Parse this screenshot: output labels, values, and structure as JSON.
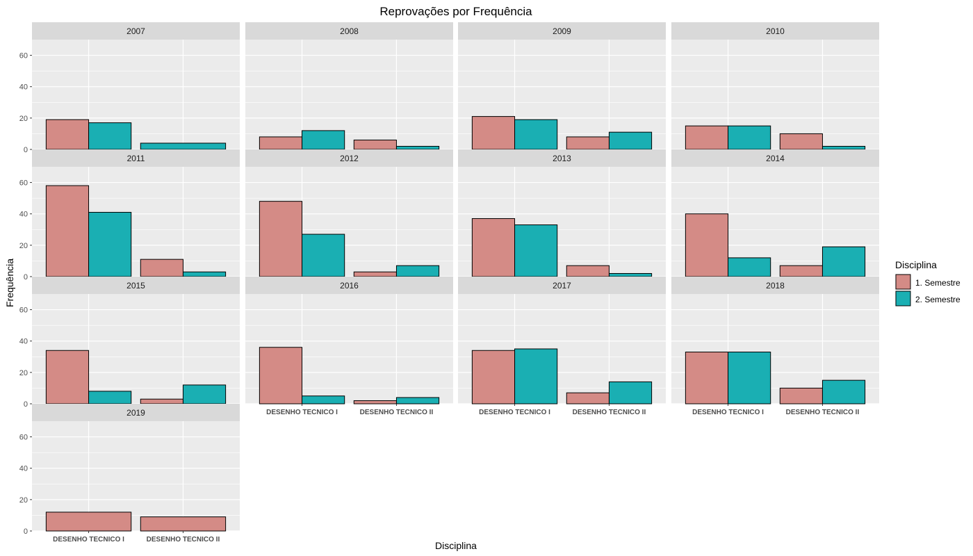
{
  "chart_data": {
    "type": "bar",
    "title": "Reprovações por Frequência",
    "xlabel": "Disciplina",
    "ylabel": "Frequência",
    "ylim": [
      0,
      70
    ],
    "yticks": [
      0,
      20,
      40,
      60
    ],
    "categories": [
      "DESENHO TECNICO I",
      "DESENHO TECNICO II"
    ],
    "legend": {
      "title": "Disciplina",
      "position": "right",
      "entries": [
        {
          "label": "1. Semestre",
          "color": "#d48b86"
        },
        {
          "label": "2. Semestre",
          "color": "#1aafb3"
        }
      ]
    },
    "facets": [
      {
        "label": "2007",
        "series": [
          {
            "name": "1. Semestre",
            "values": [
              19,
              0
            ]
          },
          {
            "name": "2. Semestre",
            "values": [
              17,
              4
            ]
          }
        ]
      },
      {
        "label": "2008",
        "series": [
          {
            "name": "1. Semestre",
            "values": [
              8,
              6
            ]
          },
          {
            "name": "2. Semestre",
            "values": [
              12,
              2
            ]
          }
        ]
      },
      {
        "label": "2009",
        "series": [
          {
            "name": "1. Semestre",
            "values": [
              21,
              8
            ]
          },
          {
            "name": "2. Semestre",
            "values": [
              19,
              11
            ]
          }
        ]
      },
      {
        "label": "2010",
        "series": [
          {
            "name": "1. Semestre",
            "values": [
              15,
              10
            ]
          },
          {
            "name": "2. Semestre",
            "values": [
              15,
              2
            ]
          }
        ]
      },
      {
        "label": "2011",
        "series": [
          {
            "name": "1. Semestre",
            "values": [
              58,
              11
            ]
          },
          {
            "name": "2. Semestre",
            "values": [
              41,
              3
            ]
          }
        ]
      },
      {
        "label": "2012",
        "series": [
          {
            "name": "1. Semestre",
            "values": [
              48,
              3
            ]
          },
          {
            "name": "2. Semestre",
            "values": [
              27,
              7
            ]
          }
        ]
      },
      {
        "label": "2013",
        "series": [
          {
            "name": "1. Semestre",
            "values": [
              37,
              7
            ]
          },
          {
            "name": "2. Semestre",
            "values": [
              33,
              2
            ]
          }
        ]
      },
      {
        "label": "2014",
        "series": [
          {
            "name": "1. Semestre",
            "values": [
              40,
              7
            ]
          },
          {
            "name": "2. Semestre",
            "values": [
              12,
              19
            ]
          }
        ]
      },
      {
        "label": "2015",
        "series": [
          {
            "name": "1. Semestre",
            "values": [
              34,
              3
            ]
          },
          {
            "name": "2. Semestre",
            "values": [
              8,
              12
            ]
          }
        ]
      },
      {
        "label": "2016",
        "series": [
          {
            "name": "1. Semestre",
            "values": [
              36,
              2
            ]
          },
          {
            "name": "2. Semestre",
            "values": [
              5,
              4
            ]
          }
        ]
      },
      {
        "label": "2017",
        "series": [
          {
            "name": "1. Semestre",
            "values": [
              34,
              7
            ]
          },
          {
            "name": "2. Semestre",
            "values": [
              35,
              14
            ]
          }
        ]
      },
      {
        "label": "2018",
        "series": [
          {
            "name": "1. Semestre",
            "values": [
              33,
              10
            ]
          },
          {
            "name": "2. Semestre",
            "values": [
              33,
              15
            ]
          }
        ]
      },
      {
        "label": "2019",
        "series": [
          {
            "name": "1. Semestre",
            "values": [
              12,
              9
            ]
          },
          {
            "name": "2. Semestre",
            "values": [
              0,
              0
            ]
          }
        ]
      }
    ]
  }
}
